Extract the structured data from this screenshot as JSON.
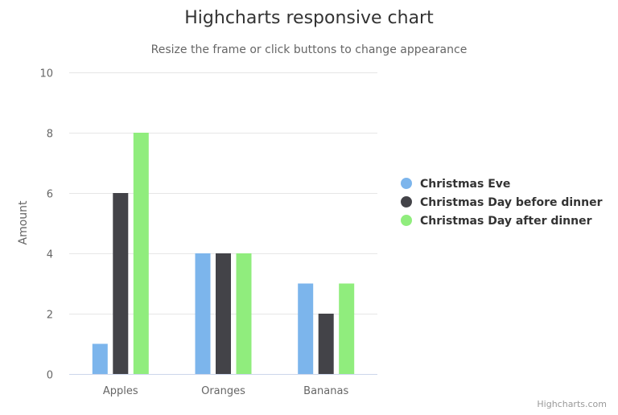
{
  "chart_data": {
    "type": "bar",
    "title": "Highcharts responsive chart",
    "subtitle": "Resize the frame or click buttons to change appearance",
    "categories": [
      "Apples",
      "Oranges",
      "Bananas"
    ],
    "series": [
      {
        "name": "Christmas Eve",
        "values": [
          1,
          4,
          3
        ],
        "color": "#7cb5ec"
      },
      {
        "name": "Christmas Day before dinner",
        "values": [
          6,
          4,
          2
        ],
        "color": "#434348"
      },
      {
        "name": "Christmas Day after dinner",
        "values": [
          8,
          4,
          3
        ],
        "color": "#90ed7d"
      }
    ],
    "xlabel": "",
    "ylabel": "Amount",
    "ylim": [
      0,
      10
    ],
    "yticks": [
      0,
      2,
      4,
      6,
      8,
      10
    ],
    "grid": true,
    "legend_position": "right"
  },
  "credits": "Highcharts.com"
}
